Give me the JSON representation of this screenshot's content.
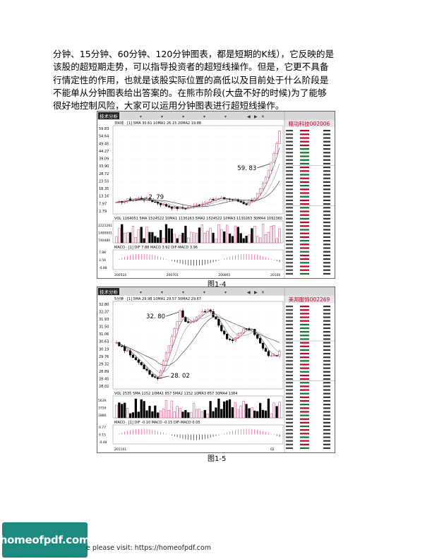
{
  "paragraph": {
    "lines": [
      "分钟、15分钟、60分钟、120分钟图表，都是短期的K线），它反映的是",
      "该股的超短期走势，可以指导投资者的超短线操作。但是，它更不具备",
      "行情定性的作用，也就是该股实际位置的高低以及目前处于什么阶段是",
      "不能单从分钟图表给出答案的。在熊市阶段(大盘不好的时候)为了能够",
      "很好地控制风险，大家可以运用分钟图表进行超短线操作。"
    ]
  },
  "figure1": {
    "caption": "图1-4",
    "stock_title": "精功科技002006",
    "toolbar_label": "技术分析",
    "ma_line": "日K线 · [1]  5MA 30.61  10MA1 26.15  20MA2 19.88",
    "vol_line": "VOL 1164051  5MA 1524522  10MA1 1130263  5MA2 1524522  10MA3 1130263  30MA4 1092360",
    "macd_line": "MACD · [1]  DIF 7.88  MACD 3.92  DIF-MACD 3.96",
    "price_ticks": [
      "59.83",
      "54.64",
      "49.45",
      "44.27",
      "39.09",
      "33.90",
      "28.72",
      "23.53",
      "18.35",
      "13.16",
      "7.97",
      "2.79"
    ],
    "vol_ticks": [
      "2221261",
      "1480001",
      "740480"
    ],
    "macd_ticks": [
      "7.88",
      "3.56",
      "-0.88"
    ],
    "date_ticks": [
      "200510",
      "200701",
      "200801",
      "20100"
    ],
    "annotation_high": "59. 83",
    "annotation_low": "2. 79"
  },
  "figure2": {
    "caption": "图1-5",
    "stock_title": "美邦服饰002269",
    "toolbar_label": "技术分析",
    "ma_line": "5分钟 · [1]  5MA 29.98  10MA1 29.57  30MA2 29.67",
    "vol_line": "VOL 2535  5MA 1152  10MA1 857  5MA2 1152  10MA3 857  30MA4 1384",
    "macd_line": "MACD · [1]  DIF -0.10  MACD -0.15  DIF-MACD 0.05",
    "price_ticks": [
      "32.80",
      "32.37",
      "31.93",
      "31.50",
      "31.06",
      "30.63",
      "30.19",
      "29.76",
      "29.32",
      "28.89",
      "28.45",
      "28.02"
    ],
    "vol_ticks": [
      "5639",
      "3759",
      "1880"
    ],
    "macd_ticks": [
      "0.77",
      "0.15",
      "-0.48"
    ],
    "date_ticks": [
      "201101",
      "02"
    ],
    "annotation_high": "32. 80",
    "annotation_low": "28. 02"
  },
  "watermark": {
    "logo": "homeofpdf.com",
    "footer": "e please visit: https://homeofpdf.com"
  },
  "colors": {
    "up": "#e0307a",
    "down": "#000000",
    "teal": "#1c8a7e"
  }
}
